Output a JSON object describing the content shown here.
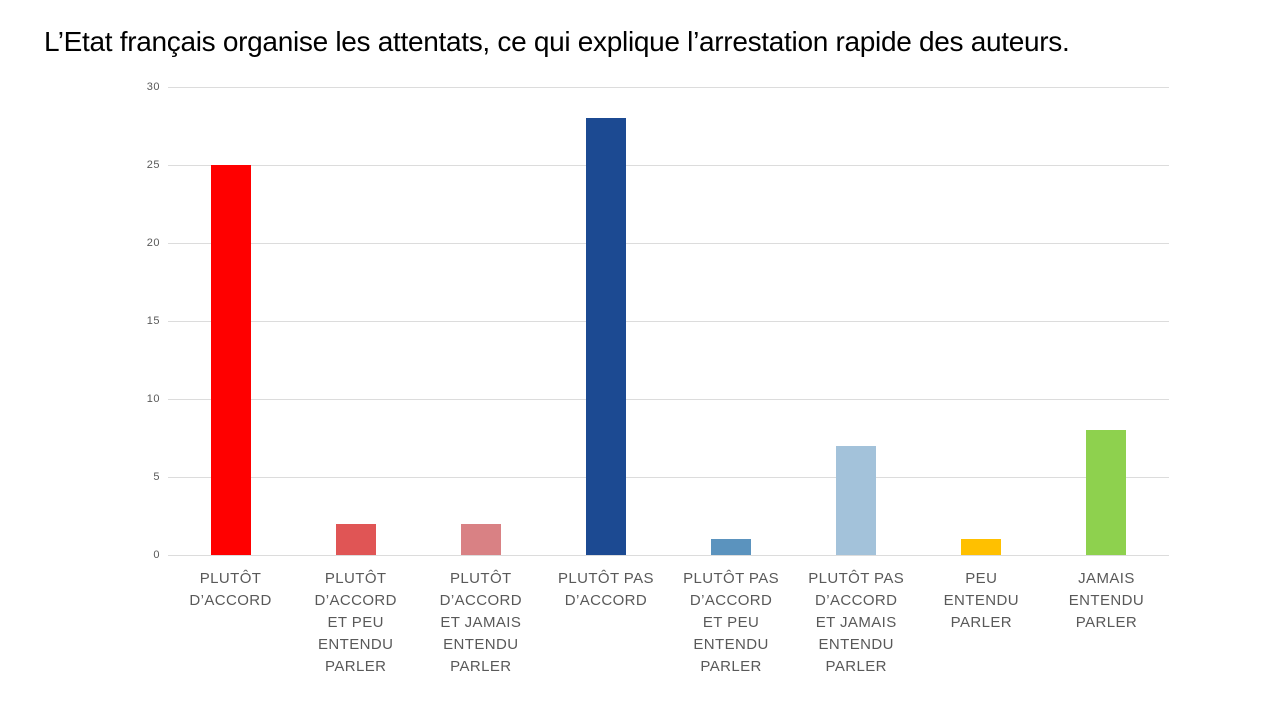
{
  "title": "L’Etat français organise les attentats, ce qui explique l’arrestation rapide des auteurs.",
  "chart_data": {
    "type": "bar",
    "title": "L’Etat français organise les attentats, ce qui explique l’arrestation rapide des auteurs.",
    "categories": [
      "PLUTÔT D’ACCORD",
      "PLUTÔT D’ACCORD ET PEU ENTENDU PARLER",
      "PLUTÔT D’ACCORD ET JAMAIS ENTENDU PARLER",
      "PLUTÔT PAS D’ACCORD",
      "PLUTÔT PAS D’ACCORD ET PEU ENTENDU PARLER",
      "PLUTÔT PAS D’ACCORD ET JAMAIS ENTENDU PARLER",
      "PEU ENTENDU PARLER",
      "JAMAIS ENTENDU PARLER"
    ],
    "tick_lines": [
      [
        "PLUTÔT",
        "D’ACCORD"
      ],
      [
        "PLUTÔT",
        "D’ACCORD",
        "ET PEU",
        "ENTENDU",
        "PARLER"
      ],
      [
        "PLUTÔT",
        "D’ACCORD",
        "ET JAMAIS",
        "ENTENDU",
        "PARLER"
      ],
      [
        "PLUTÔT PAS",
        "D’ACCORD"
      ],
      [
        "PLUTÔT PAS",
        "D’ACCORD",
        "ET PEU",
        "ENTENDU",
        "PARLER"
      ],
      [
        "PLUTÔT PAS",
        "D’ACCORD",
        "ET JAMAIS",
        "ENTENDU",
        "PARLER"
      ],
      [
        "PEU",
        "ENTENDU",
        "PARLER"
      ],
      [
        "JAMAIS",
        "ENTENDU",
        "PARLER"
      ]
    ],
    "values": [
      25,
      2,
      2,
      28,
      1,
      7,
      1,
      8
    ],
    "bar_colors": [
      "#FF0000",
      "#E05555",
      "#D98184",
      "#1C4A92",
      "#5B93BE",
      "#A3C2DA",
      "#FFC000",
      "#8ED14E"
    ],
    "xlabel": "",
    "ylabel": "",
    "ylim": [
      0,
      30
    ],
    "yticks": [
      0,
      5,
      10,
      15,
      20,
      25,
      30
    ],
    "grid": "horizontal",
    "legend": "none",
    "styles": {
      "title_color": "#000000",
      "tick_label_color": "#595959",
      "gridline_color": "#DCDCDC",
      "background": "#FFFFFF"
    }
  }
}
